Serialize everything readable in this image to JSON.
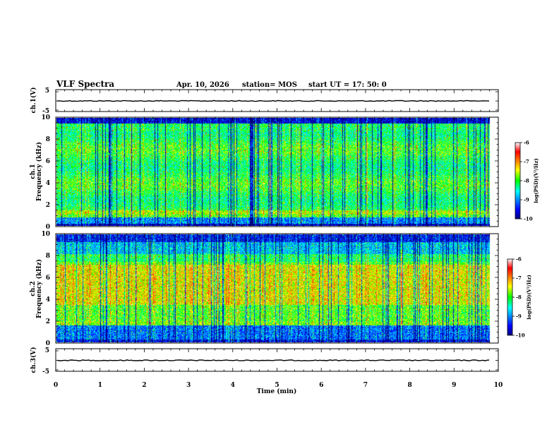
{
  "header": {
    "title": "VLF Spectra",
    "date": "Apr. 10, 2026",
    "station": "station= MOS",
    "start": "start  UT  =    17: 50: 0"
  },
  "chart_data": {
    "type": "heatmap",
    "xlabel": "Time  (min)",
    "xlim": [
      0,
      10
    ],
    "xticks": [
      "0",
      "1",
      "2",
      "3",
      "4",
      "5",
      "6",
      "7",
      "8",
      "9",
      "10"
    ],
    "data_end_min": 9.83,
    "panels": [
      {
        "id": "ch1-waveform",
        "kind": "line",
        "ylabel": "ch.1(V)",
        "ylim": [
          -5,
          5
        ],
        "yticks": [
          "5",
          "-5"
        ],
        "level": 0
      },
      {
        "id": "ch1-spectrogram",
        "kind": "spectrogram",
        "ylabel_lines": [
          "ch.1",
          "Frequency  (kHz)"
        ],
        "ylim": [
          0,
          10
        ],
        "yticks": [
          "0",
          "2",
          "4",
          "6",
          "8",
          "10"
        ],
        "colorbar": {
          "label": "log(PSD)(V²/Hz)",
          "range": [
            -10,
            -6
          ],
          "ticks": [
            "-6",
            "-7",
            "-8",
            "-9",
            "-10"
          ]
        }
      },
      {
        "id": "ch2-spectrogram",
        "kind": "spectrogram",
        "ylabel_lines": [
          "ch.2",
          "Frequency  (kHz)"
        ],
        "ylim": [
          0,
          10
        ],
        "yticks": [
          "0",
          "2",
          "4",
          "6",
          "8",
          "10"
        ],
        "colorbar": {
          "label": "log(PSD)(V²/Hz)",
          "range": [
            -10,
            -6
          ],
          "ticks": [
            "-6",
            "-7",
            "-8",
            "-9",
            "-10"
          ]
        }
      },
      {
        "id": "ch3-waveform",
        "kind": "line",
        "ylabel": "ch.3(V)",
        "ylim": [
          -5,
          5
        ],
        "yticks": [
          "5",
          "-5"
        ],
        "level": 0
      }
    ]
  }
}
